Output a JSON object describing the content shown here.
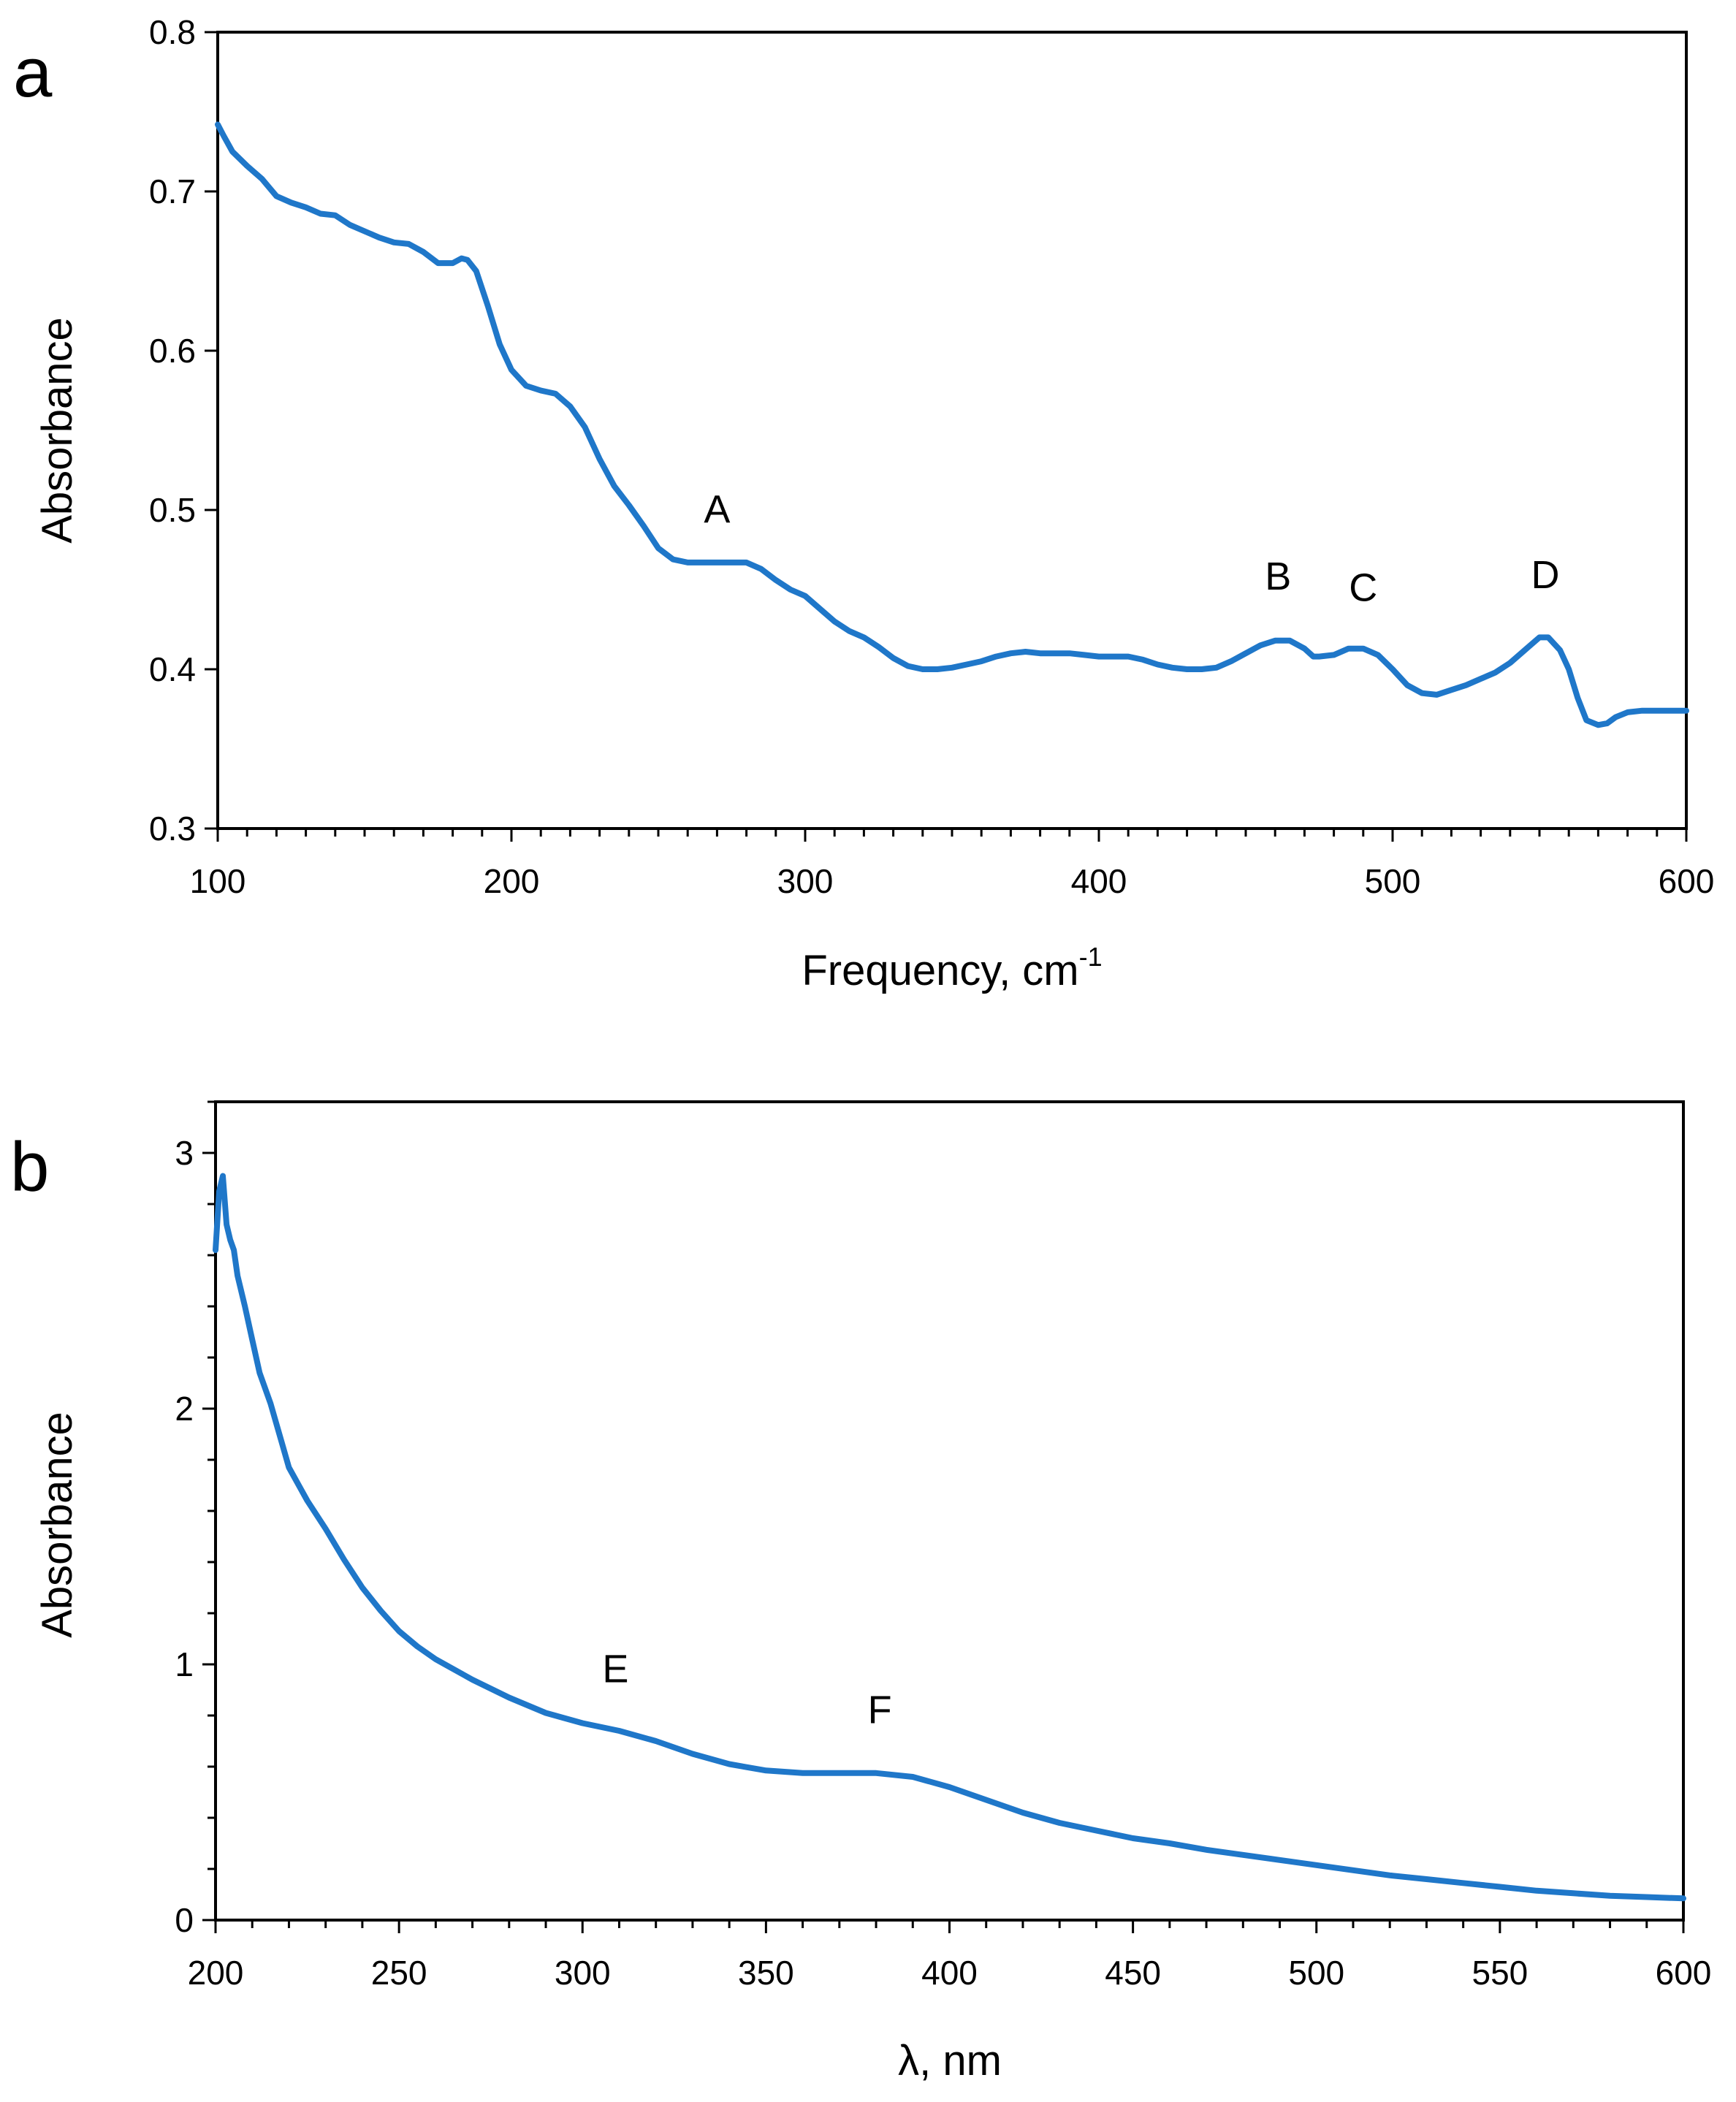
{
  "colors": {
    "series": "#1f77c9",
    "axis": "#000000",
    "background": "#ffffff"
  },
  "chart_data": [
    {
      "type": "line",
      "panel": "a",
      "xlabel": "Frequency, cm",
      "xlabel_superscript": "-1",
      "ylabel": "Absorbance",
      "xlim": [
        100,
        600
      ],
      "ylim": [
        0.3,
        0.8
      ],
      "xticks": [
        100,
        200,
        300,
        400,
        500,
        600
      ],
      "xtick_labels": [
        "100",
        "200",
        "300",
        "400",
        "500",
        "600"
      ],
      "x_minor_step": 10,
      "yticks": [
        0.3,
        0.4,
        0.5,
        0.6,
        0.7,
        0.8
      ],
      "ytick_labels": [
        "0.3",
        "0.4",
        "0.5",
        "0.6",
        "0.7",
        "0.8"
      ],
      "grid": false,
      "series": [
        {
          "name": "Absorbance",
          "x": [
            100,
            102,
            105,
            110,
            115,
            120,
            125,
            130,
            135,
            140,
            145,
            150,
            155,
            160,
            165,
            170,
            175,
            180,
            183,
            185,
            188,
            192,
            196,
            200,
            205,
            210,
            215,
            220,
            225,
            230,
            235,
            240,
            245,
            250,
            255,
            260,
            265,
            270,
            275,
            280,
            285,
            290,
            295,
            300,
            305,
            310,
            315,
            320,
            325,
            330,
            335,
            340,
            345,
            350,
            355,
            360,
            365,
            370,
            375,
            380,
            385,
            390,
            395,
            400,
            405,
            410,
            415,
            420,
            425,
            430,
            435,
            440,
            445,
            450,
            455,
            460,
            465,
            470,
            473,
            475,
            480,
            485,
            490,
            495,
            500,
            505,
            510,
            515,
            520,
            525,
            530,
            535,
            540,
            545,
            550,
            553,
            557,
            560,
            563,
            566,
            570,
            573,
            576,
            580,
            585,
            590,
            595,
            600
          ],
          "y": [
            0.742,
            0.735,
            0.725,
            0.716,
            0.708,
            0.697,
            0.693,
            0.69,
            0.686,
            0.685,
            0.679,
            0.675,
            0.671,
            0.668,
            0.667,
            0.662,
            0.655,
            0.655,
            0.658,
            0.657,
            0.65,
            0.628,
            0.604,
            0.588,
            0.578,
            0.575,
            0.573,
            0.565,
            0.552,
            0.532,
            0.515,
            0.503,
            0.49,
            0.476,
            0.469,
            0.467,
            0.467,
            0.467,
            0.467,
            0.467,
            0.463,
            0.456,
            0.45,
            0.446,
            0.438,
            0.43,
            0.424,
            0.42,
            0.414,
            0.407,
            0.402,
            0.4,
            0.4,
            0.401,
            0.403,
            0.405,
            0.408,
            0.41,
            0.411,
            0.41,
            0.41,
            0.41,
            0.409,
            0.408,
            0.408,
            0.408,
            0.406,
            0.403,
            0.401,
            0.4,
            0.4,
            0.401,
            0.405,
            0.41,
            0.415,
            0.418,
            0.418,
            0.413,
            0.408,
            0.408,
            0.409,
            0.413,
            0.413,
            0.409,
            0.4,
            0.39,
            0.385,
            0.384,
            0.387,
            0.39,
            0.394,
            0.398,
            0.404,
            0.412,
            0.42,
            0.42,
            0.412,
            0.4,
            0.382,
            0.368,
            0.365,
            0.366,
            0.37,
            0.373,
            0.374,
            0.374,
            0.374,
            0.374
          ]
        }
      ],
      "annotations": [
        {
          "text": "A",
          "x": 270,
          "y": 0.492
        },
        {
          "text": "B",
          "x": 461,
          "y": 0.45
        },
        {
          "text": "C",
          "x": 490,
          "y": 0.443
        },
        {
          "text": "D",
          "x": 552,
          "y": 0.451
        }
      ]
    },
    {
      "type": "line",
      "panel": "b",
      "xlabel": "λ, nm",
      "ylabel": "Absorbance",
      "xlim": [
        200,
        600
      ],
      "ylim": [
        0,
        3.2
      ],
      "xticks": [
        200,
        250,
        300,
        350,
        400,
        450,
        500,
        550,
        600
      ],
      "xtick_labels": [
        "200",
        "250",
        "300",
        "350",
        "400",
        "450",
        "500",
        "550",
        "600"
      ],
      "x_minor_step": 10,
      "yticks": [
        0,
        1,
        2,
        3
      ],
      "ytick_labels": [
        "0",
        "1",
        "2",
        "3"
      ],
      "y_minor_step": 0.2,
      "grid": false,
      "series": [
        {
          "name": "Absorbance",
          "x": [
            200,
            201,
            202,
            203,
            204,
            205,
            206,
            208,
            210,
            212,
            215,
            218,
            220,
            225,
            230,
            235,
            240,
            245,
            250,
            255,
            260,
            270,
            280,
            290,
            300,
            310,
            320,
            330,
            340,
            350,
            360,
            370,
            380,
            390,
            400,
            410,
            420,
            430,
            440,
            450,
            460,
            470,
            480,
            490,
            500,
            510,
            520,
            530,
            540,
            550,
            560,
            570,
            580,
            590,
            600
          ],
          "y": [
            2.62,
            2.85,
            2.91,
            2.72,
            2.66,
            2.62,
            2.52,
            2.4,
            2.27,
            2.14,
            2.02,
            1.87,
            1.77,
            1.64,
            1.53,
            1.41,
            1.3,
            1.21,
            1.13,
            1.07,
            1.02,
            0.94,
            0.87,
            0.81,
            0.77,
            0.74,
            0.7,
            0.65,
            0.61,
            0.585,
            0.575,
            0.575,
            0.575,
            0.56,
            0.52,
            0.47,
            0.42,
            0.38,
            0.35,
            0.32,
            0.3,
            0.275,
            0.255,
            0.235,
            0.215,
            0.195,
            0.175,
            0.16,
            0.145,
            0.13,
            0.115,
            0.105,
            0.095,
            0.09,
            0.085
          ]
        }
      ],
      "annotations": [
        {
          "text": "E",
          "x": 309,
          "y": 0.93
        },
        {
          "text": "F",
          "x": 381,
          "y": 0.77
        }
      ]
    }
  ]
}
